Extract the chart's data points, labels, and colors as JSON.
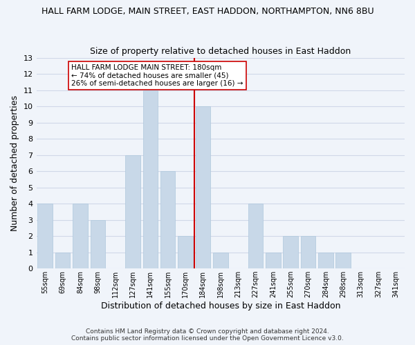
{
  "title_line1": "HALL FARM LODGE, MAIN STREET, EAST HADDON, NORTHAMPTON, NN6 8BU",
  "title_line2": "Size of property relative to detached houses in East Haddon",
  "xlabel": "Distribution of detached houses by size in East Haddon",
  "ylabel": "Number of detached properties",
  "bar_labels": [
    "55sqm",
    "69sqm",
    "84sqm",
    "98sqm",
    "112sqm",
    "127sqm",
    "141sqm",
    "155sqm",
    "170sqm",
    "184sqm",
    "198sqm",
    "213sqm",
    "227sqm",
    "241sqm",
    "255sqm",
    "270sqm",
    "284sqm",
    "298sqm",
    "313sqm",
    "327sqm",
    "341sqm"
  ],
  "bar_values": [
    4,
    1,
    4,
    3,
    0,
    7,
    11,
    6,
    2,
    10,
    1,
    0,
    4,
    1,
    2,
    2,
    1,
    1,
    0,
    0,
    0
  ],
  "bar_color": "#c8d8e8",
  "bar_edge_color": "#aec8dc",
  "grid_color": "#d0d8e8",
  "vline_color": "#cc0000",
  "annotation_text": "HALL FARM LODGE MAIN STREET: 180sqm\n← 74% of detached houses are smaller (45)\n26% of semi-detached houses are larger (16) →",
  "annotation_box_color": "#ffffff",
  "annotation_box_edge": "#cc0000",
  "ylim": [
    0,
    13
  ],
  "yticks": [
    0,
    1,
    2,
    3,
    4,
    5,
    6,
    7,
    8,
    9,
    10,
    11,
    12,
    13
  ],
  "footer1": "Contains HM Land Registry data © Crown copyright and database right 2024.",
  "footer2": "Contains public sector information licensed under the Open Government Licence v3.0.",
  "bg_color": "#f0f4fa",
  "title1_fontsize": 9,
  "title2_fontsize": 9,
  "vline_index": 9
}
